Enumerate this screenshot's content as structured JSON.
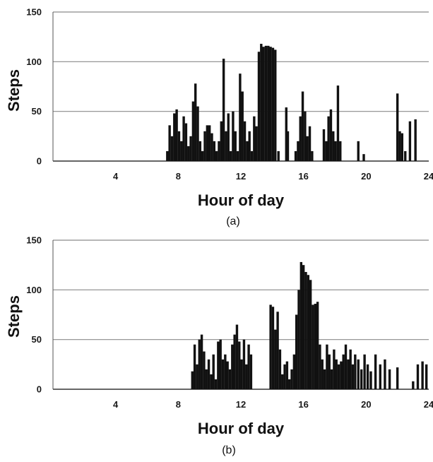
{
  "chart_data": [
    {
      "type": "bar",
      "panel_label": "(a)",
      "xlabel": "Hour of day",
      "ylabel": "Steps",
      "xlim": [
        0,
        24
      ],
      "ylim": [
        0,
        150
      ],
      "xticks": [
        4,
        8,
        12,
        16,
        20,
        24
      ],
      "yticks": [
        0,
        50,
        100,
        150
      ],
      "grid": true,
      "bar_color": "#111111",
      "x": [
        7.3,
        7.45,
        7.6,
        7.75,
        7.9,
        8.05,
        8.2,
        8.35,
        8.5,
        8.65,
        8.8,
        8.95,
        9.1,
        9.25,
        9.4,
        9.55,
        9.7,
        9.85,
        10.0,
        10.15,
        10.3,
        10.45,
        10.6,
        10.75,
        10.9,
        11.05,
        11.2,
        11.35,
        11.5,
        11.65,
        11.8,
        11.95,
        12.1,
        12.25,
        12.4,
        12.55,
        12.7,
        12.85,
        13.0,
        13.15,
        13.3,
        13.45,
        13.6,
        13.75,
        13.9,
        14.05,
        14.2,
        14.4,
        14.9,
        15.0,
        15.5,
        15.65,
        15.8,
        15.95,
        16.1,
        16.25,
        16.4,
        16.55,
        17.3,
        17.45,
        17.6,
        17.75,
        17.9,
        18.05,
        18.2,
        18.35,
        19.5,
        19.85,
        22.0,
        22.15,
        22.3,
        22.5,
        22.8,
        23.15
      ],
      "values": [
        10,
        36,
        25,
        48,
        52,
        30,
        20,
        45,
        38,
        15,
        25,
        60,
        78,
        55,
        20,
        10,
        30,
        36,
        36,
        28,
        20,
        10,
        20,
        40,
        103,
        30,
        48,
        10,
        50,
        30,
        10,
        88,
        70,
        40,
        20,
        30,
        10,
        45,
        35,
        110,
        118,
        115,
        116,
        116,
        115,
        114,
        112,
        10,
        54,
        30,
        10,
        20,
        45,
        70,
        50,
        25,
        35,
        10,
        32,
        20,
        45,
        52,
        30,
        20,
        76,
        20,
        20,
        7,
        68,
        30,
        28,
        10,
        40,
        42
      ]
    },
    {
      "type": "bar",
      "panel_label": "(b)",
      "xlabel": "Hour of day",
      "ylabel": "Steps",
      "xlim": [
        0,
        24
      ],
      "ylim": [
        0,
        150
      ],
      "xticks": [
        4,
        8,
        12,
        16,
        20,
        24
      ],
      "yticks": [
        0,
        50,
        100,
        150
      ],
      "grid": true,
      "bar_color": "#111111",
      "x": [
        8.9,
        9.05,
        9.2,
        9.35,
        9.5,
        9.65,
        9.8,
        9.95,
        10.1,
        10.25,
        10.4,
        10.55,
        10.7,
        10.85,
        11.0,
        11.15,
        11.3,
        11.45,
        11.6,
        11.75,
        11.9,
        12.05,
        12.2,
        12.35,
        12.5,
        12.65,
        13.9,
        14.05,
        14.2,
        14.35,
        14.5,
        14.65,
        14.8,
        14.95,
        15.1,
        15.25,
        15.4,
        15.55,
        15.7,
        15.85,
        16.0,
        16.15,
        16.3,
        16.45,
        16.6,
        16.75,
        16.9,
        17.05,
        17.2,
        17.35,
        17.5,
        17.65,
        17.8,
        17.95,
        18.1,
        18.25,
        18.4,
        18.55,
        18.7,
        18.85,
        19.0,
        19.15,
        19.3,
        19.5,
        19.7,
        19.9,
        20.1,
        20.3,
        20.6,
        20.9,
        21.2,
        21.5,
        22.0,
        23.0,
        23.3,
        23.6,
        23.85
      ],
      "values": [
        18,
        45,
        25,
        50,
        55,
        38,
        20,
        30,
        15,
        35,
        10,
        48,
        50,
        30,
        35,
        28,
        20,
        45,
        55,
        65,
        48,
        30,
        50,
        25,
        45,
        35,
        85,
        83,
        60,
        78,
        40,
        15,
        25,
        28,
        10,
        20,
        35,
        75,
        100,
        128,
        125,
        118,
        115,
        110,
        85,
        86,
        88,
        45,
        30,
        20,
        45,
        35,
        20,
        40,
        30,
        25,
        28,
        35,
        45,
        30,
        40,
        25,
        35,
        30,
        20,
        35,
        25,
        18,
        35,
        25,
        30,
        20,
        22,
        8,
        25,
        28,
        25
      ]
    }
  ]
}
